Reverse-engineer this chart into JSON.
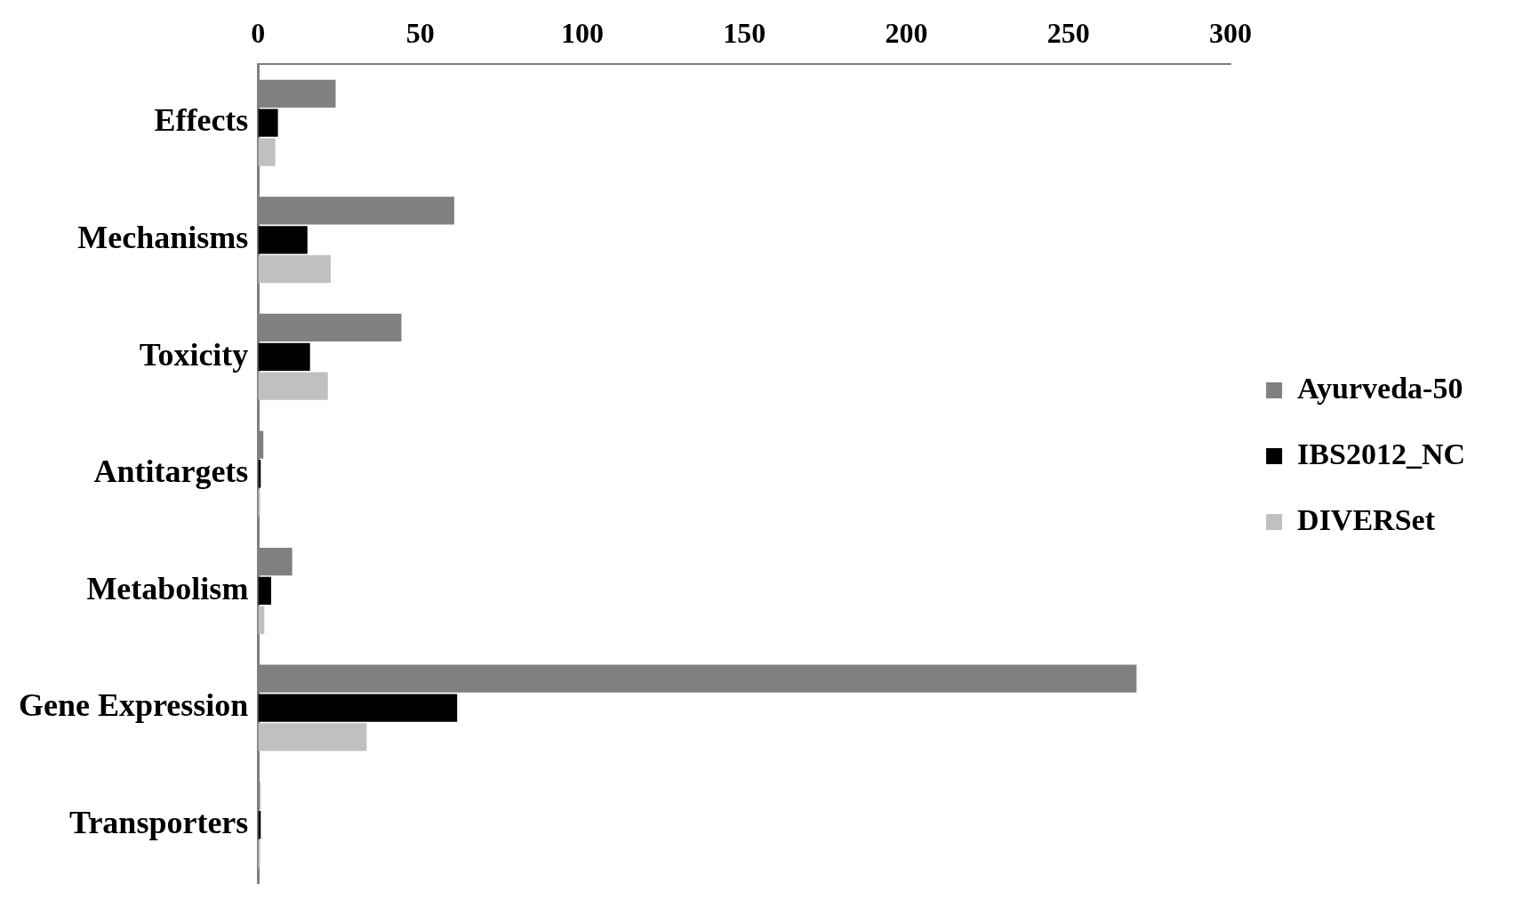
{
  "chart_data": {
    "type": "bar",
    "orientation": "horizontal",
    "categories": [
      "Effects",
      "Mechanisms",
      "Toxicity",
      "Antitargets",
      "Metabolism",
      "Gene Expression",
      "Transporters"
    ],
    "series": [
      {
        "name": "Ayurveda-50",
        "color": "#808080",
        "values": [
          23.9,
          60.5,
          44.2,
          1.6,
          10.5,
          271,
          0.6
        ]
      },
      {
        "name": "IBS2012_NC",
        "color": "#000000",
        "values": [
          6.1,
          15.2,
          16.0,
          0.8,
          4.0,
          61.4,
          0.8
        ]
      },
      {
        "name": "DIVERSet",
        "color": "#c0c0c0",
        "values": [
          5.3,
          22.4,
          21.5,
          0.6,
          1.9,
          33.5,
          0.6
        ]
      }
    ],
    "xlim": [
      0,
      300
    ],
    "xticks": [
      0,
      50,
      100,
      150,
      200,
      250,
      300
    ],
    "grid": false,
    "legend": "right"
  }
}
